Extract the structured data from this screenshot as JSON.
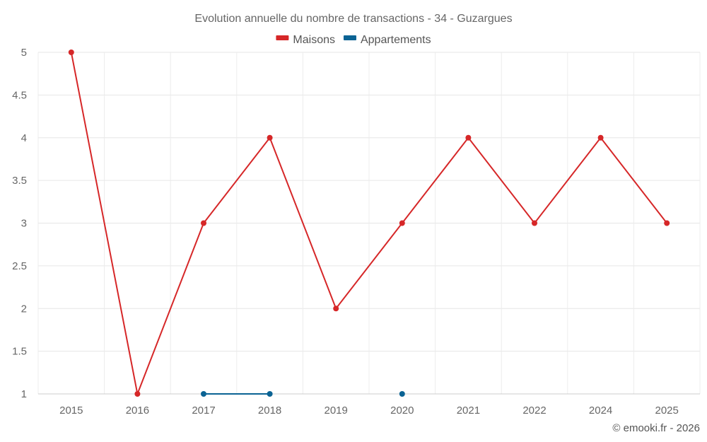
{
  "chart_data": {
    "type": "line",
    "title": "Evolution annuelle du nombre de transactions - 34 - Guzargues",
    "categories": [
      "2015",
      "2016",
      "2017",
      "2018",
      "2019",
      "2020",
      "2021",
      "2022",
      "2024",
      "2025"
    ],
    "yticks": [
      "1",
      "1.5",
      "2",
      "2.5",
      "3",
      "3.5",
      "4",
      "4.5",
      "5"
    ],
    "ylim": [
      1,
      5
    ],
    "grid": true,
    "legend_position": "top-center",
    "series": [
      {
        "name": "Maisons",
        "color": "#d62728",
        "values": [
          5,
          1,
          3,
          4,
          2,
          3,
          4,
          3,
          4,
          3
        ]
      },
      {
        "name": "Appartements",
        "color": "#0b6394",
        "values": [
          null,
          null,
          1,
          1,
          null,
          1,
          null,
          null,
          null,
          null
        ]
      }
    ],
    "credit": "© emooki.fr - 2026"
  }
}
